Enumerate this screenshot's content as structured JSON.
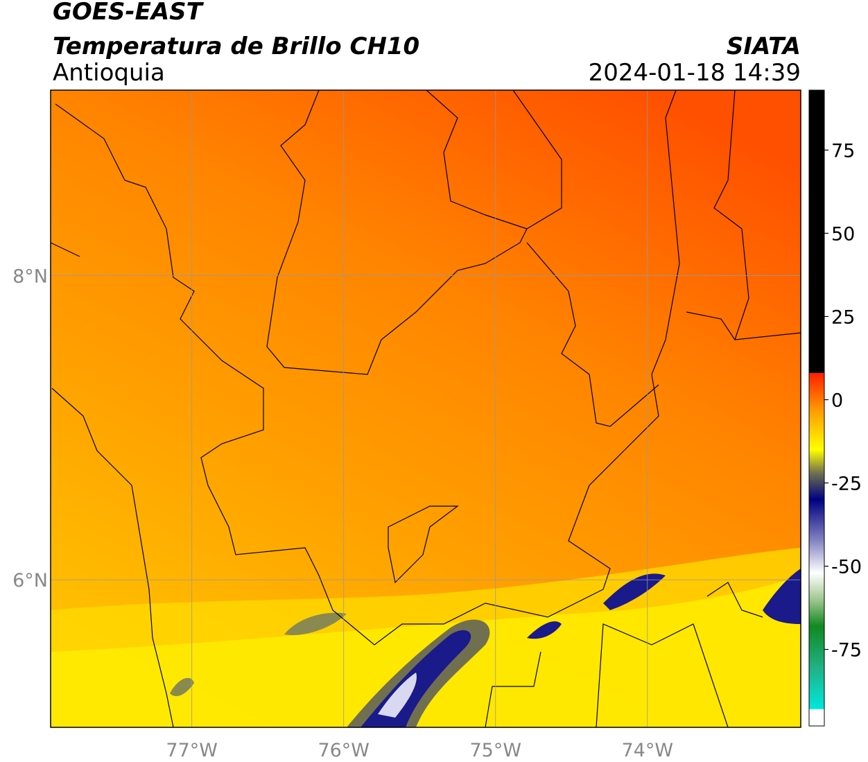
{
  "header": {
    "title": "GOES-EAST",
    "subtitle": "Temperatura de Brillo CH10",
    "region": "Antioquia",
    "source": "SIATA",
    "datetime": "2024-01-18 14:39"
  },
  "map": {
    "xlim": [
      -77.93,
      -72.99
    ],
    "ylim": [
      5.03,
      9.22
    ],
    "xticks": [
      {
        "value": -77,
        "label": "77°W"
      },
      {
        "value": -76,
        "label": "76°W"
      },
      {
        "value": -75,
        "label": "75°W"
      },
      {
        "value": -74,
        "label": "74°W"
      }
    ],
    "yticks": [
      {
        "value": 8,
        "label": "8°N"
      },
      {
        "value": 6,
        "label": "6°N"
      }
    ],
    "grid": true
  },
  "colorbar": {
    "lim": [
      -98,
      93
    ],
    "ticks": [
      75,
      50,
      25,
      0,
      -25,
      -50,
      -75
    ],
    "stops": [
      {
        "value": -98,
        "color": "#ffffff"
      },
      {
        "value": -93,
        "color": "#ffffff"
      },
      {
        "value": -92.9,
        "color": "#00e8dc"
      },
      {
        "value": -80,
        "color": "#20b080"
      },
      {
        "value": -68,
        "color": "#108a20"
      },
      {
        "value": -60,
        "color": "#a0c890"
      },
      {
        "value": -52,
        "color": "#ffffff"
      },
      {
        "value": -42,
        "color": "#8080c0"
      },
      {
        "value": -30,
        "color": "#000080"
      },
      {
        "value": -22,
        "color": "#707050"
      },
      {
        "value": -15,
        "color": "#ffff00"
      },
      {
        "value": -3,
        "color": "#ff9900"
      },
      {
        "value": 8,
        "color": "#ff2000"
      },
      {
        "value": 8.1,
        "color": "#000000"
      },
      {
        "value": 93,
        "color": "#000000"
      }
    ]
  }
}
